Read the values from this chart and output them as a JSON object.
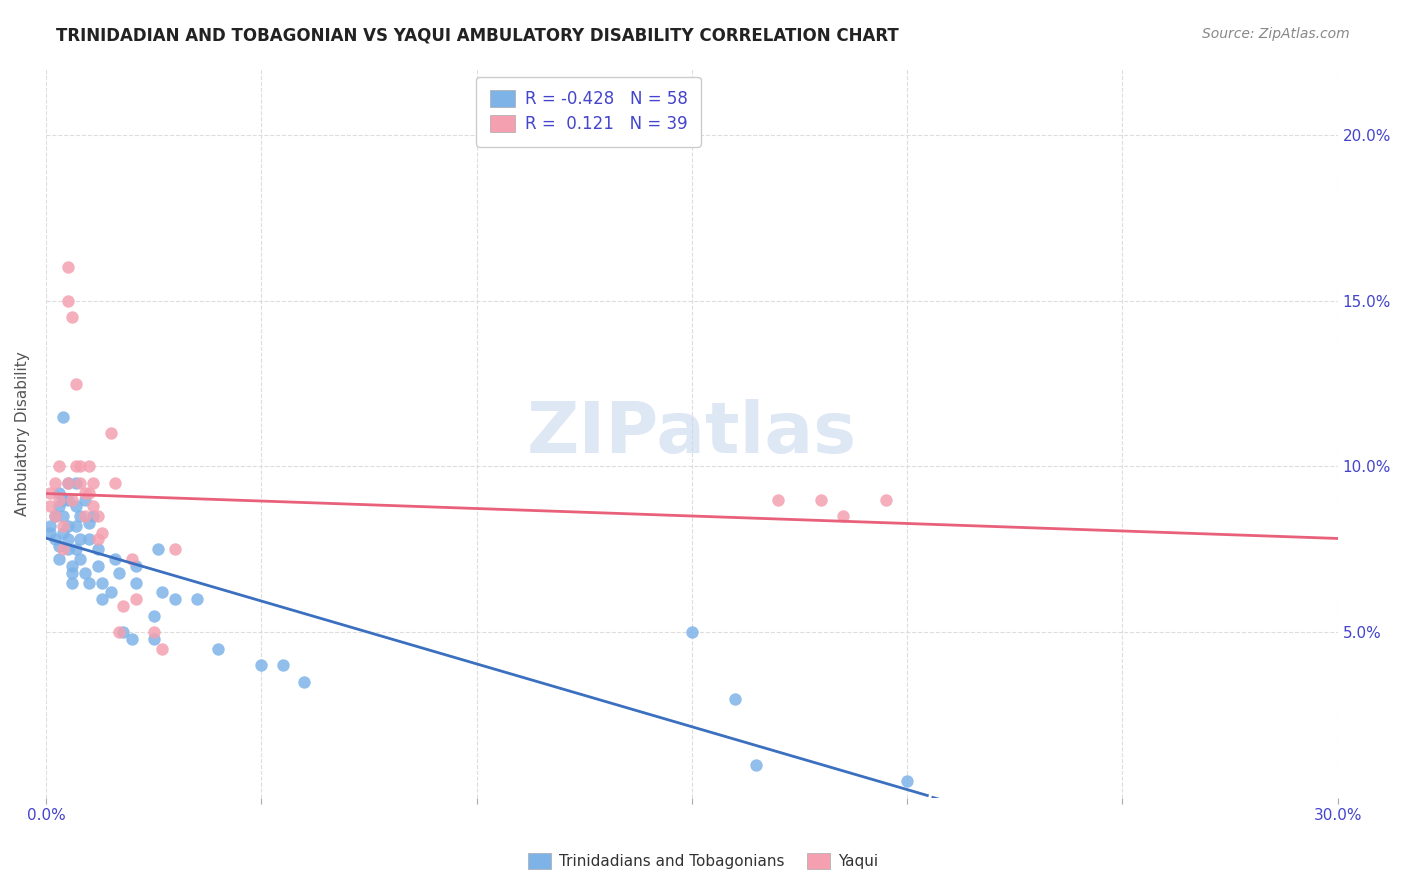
{
  "title": "TRINIDADIAN AND TOBAGONIAN VS YAQUI AMBULATORY DISABILITY CORRELATION CHART",
  "source": "Source: ZipAtlas.com",
  "ylabel": "Ambulatory Disability",
  "watermark": "ZIPatlas",
  "xlim": [
    0.0,
    0.3
  ],
  "ylim": [
    0.0,
    0.22
  ],
  "xticks": [
    0.0,
    0.05,
    0.1,
    0.15,
    0.2,
    0.25,
    0.3
  ],
  "yticks": [
    0.0,
    0.05,
    0.1,
    0.15,
    0.2
  ],
  "background_color": "#ffffff",
  "grid_color": "#dddddd",
  "blue_color": "#7EB3E8",
  "pink_color": "#F4A0B0",
  "blue_line_color": "#3B6FBF",
  "pink_line_color": "#E8607A",
  "title_color": "#222222",
  "source_color": "#888888",
  "axis_label_color": "#4444cc",
  "legend_color": "#4444cc",
  "trinidadian_R": -0.428,
  "trinidadian_N": 58,
  "yaqui_R": 0.121,
  "yaqui_N": 39,
  "trinidadian_x": [
    0.001,
    0.001,
    0.002,
    0.002,
    0.003,
    0.003,
    0.003,
    0.003,
    0.004,
    0.004,
    0.004,
    0.004,
    0.005,
    0.005,
    0.005,
    0.005,
    0.005,
    0.006,
    0.006,
    0.006,
    0.007,
    0.007,
    0.007,
    0.007,
    0.008,
    0.008,
    0.008,
    0.009,
    0.009,
    0.01,
    0.01,
    0.01,
    0.011,
    0.012,
    0.012,
    0.013,
    0.013,
    0.015,
    0.016,
    0.017,
    0.018,
    0.02,
    0.021,
    0.021,
    0.025,
    0.025,
    0.026,
    0.027,
    0.03,
    0.035,
    0.04,
    0.05,
    0.055,
    0.06,
    0.15,
    0.16,
    0.165,
    0.2
  ],
  "trinidadian_y": [
    0.08,
    0.082,
    0.085,
    0.078,
    0.092,
    0.088,
    0.076,
    0.072,
    0.115,
    0.09,
    0.085,
    0.08,
    0.095,
    0.09,
    0.082,
    0.078,
    0.075,
    0.07,
    0.068,
    0.065,
    0.095,
    0.088,
    0.082,
    0.075,
    0.085,
    0.078,
    0.072,
    0.09,
    0.068,
    0.083,
    0.078,
    0.065,
    0.085,
    0.075,
    0.07,
    0.065,
    0.06,
    0.062,
    0.072,
    0.068,
    0.05,
    0.048,
    0.07,
    0.065,
    0.055,
    0.048,
    0.075,
    0.062,
    0.06,
    0.06,
    0.045,
    0.04,
    0.04,
    0.035,
    0.05,
    0.03,
    0.01,
    0.005
  ],
  "yaqui_x": [
    0.001,
    0.001,
    0.002,
    0.002,
    0.003,
    0.003,
    0.004,
    0.004,
    0.005,
    0.005,
    0.005,
    0.006,
    0.006,
    0.007,
    0.007,
    0.008,
    0.008,
    0.009,
    0.009,
    0.01,
    0.01,
    0.011,
    0.011,
    0.012,
    0.012,
    0.013,
    0.015,
    0.016,
    0.017,
    0.018,
    0.02,
    0.021,
    0.025,
    0.027,
    0.03,
    0.17,
    0.18,
    0.185,
    0.195
  ],
  "yaqui_y": [
    0.092,
    0.088,
    0.095,
    0.085,
    0.1,
    0.09,
    0.082,
    0.075,
    0.16,
    0.15,
    0.095,
    0.145,
    0.09,
    0.125,
    0.1,
    0.1,
    0.095,
    0.092,
    0.085,
    0.1,
    0.092,
    0.095,
    0.088,
    0.085,
    0.078,
    0.08,
    0.11,
    0.095,
    0.05,
    0.058,
    0.072,
    0.06,
    0.05,
    0.045,
    0.075,
    0.09,
    0.09,
    0.085,
    0.09
  ]
}
